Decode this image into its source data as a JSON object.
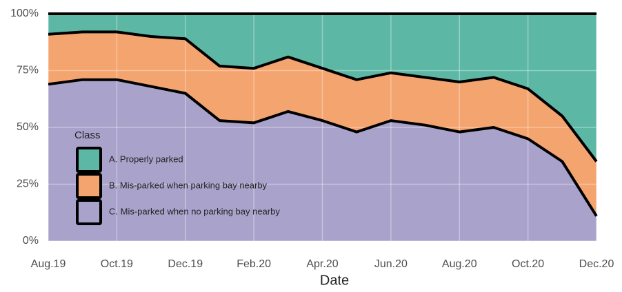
{
  "chart_data": {
    "type": "stacked_area",
    "x_label": "Date",
    "x": [
      "Aug.19",
      null,
      "Oct.19",
      null,
      "Dec.19",
      null,
      "Feb.20",
      null,
      "Apr.20",
      null,
      "Jun.20",
      null,
      "Aug.20",
      null,
      "Oct.20",
      null,
      "Dec.20"
    ],
    "series": [
      {
        "name": "C. Mis-parked when no parking bay nearby",
        "color": "#a9a3cc",
        "values": [
          69,
          71,
          71,
          68,
          65,
          53,
          52,
          57,
          53,
          48,
          53,
          51,
          48,
          50,
          45,
          35,
          11
        ]
      },
      {
        "name": "B. Mis-parked when parking bay nearby",
        "color": "#f4a46e",
        "values": [
          22,
          21,
          21,
          22,
          24,
          24,
          24,
          24,
          23,
          23,
          21,
          21,
          22,
          22,
          22,
          20,
          24
        ]
      },
      {
        "name": "A. Properly parked",
        "color": "#5cb8a5",
        "values": [
          9,
          8,
          8,
          10,
          11,
          23,
          24,
          19,
          24,
          29,
          26,
          28,
          30,
          28,
          33,
          45,
          65
        ]
      }
    ],
    "legend_title": "Class",
    "ylim": [
      0,
      100
    ],
    "yticks": [
      {
        "value": 0,
        "label": "0%"
      },
      {
        "value": 25,
        "label": "25%"
      },
      {
        "value": 50,
        "label": "50%"
      },
      {
        "value": 75,
        "label": "75%"
      },
      {
        "value": 100,
        "label": "100%"
      }
    ],
    "grid": true
  }
}
